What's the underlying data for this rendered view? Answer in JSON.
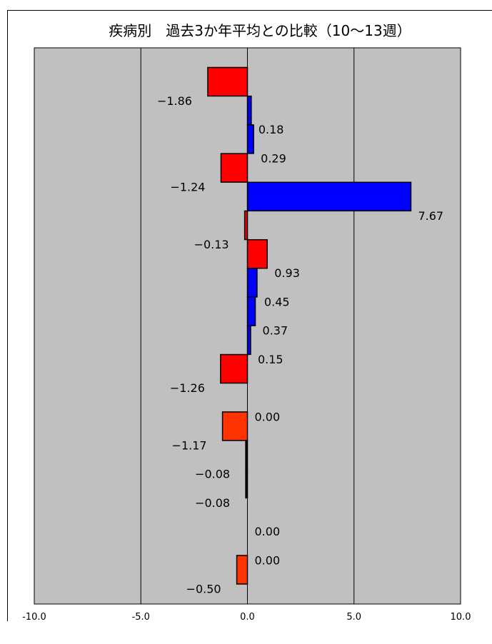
{
  "chart_data": {
    "type": "bar",
    "orientation": "horizontal",
    "title": "疾病別　過去3か年平均との比較（10～13週）",
    "xlabel": "",
    "ylabel": "",
    "xlim": [
      -10,
      10
    ],
    "x_ticks": [
      "-10.0",
      "-5.0",
      "0.0",
      "5.0",
      "10.0"
    ],
    "grid": "vertical",
    "legend": "none",
    "bars": [
      {
        "value": -1.86,
        "label": "-1.86",
        "color": "#ff0000"
      },
      {
        "value": 0.18,
        "label": "0.18",
        "color": "#0000ff"
      },
      {
        "value": 0.29,
        "label": "0.29",
        "color": "#0000ff"
      },
      {
        "value": -1.24,
        "label": "-1.24",
        "color": "#ff0000"
      },
      {
        "value": 7.67,
        "label": "7.67",
        "color": "#0000ff"
      },
      {
        "value": -0.13,
        "label": "-0.13",
        "color": "#ff0000"
      },
      {
        "value": 0.93,
        "label": "0.93",
        "color": "#ff0000"
      },
      {
        "value": 0.45,
        "label": "0.45",
        "color": "#0000ff"
      },
      {
        "value": 0.37,
        "label": "0.37",
        "color": "#0000ff"
      },
      {
        "value": 0.15,
        "label": "0.15",
        "color": "#0000ff"
      },
      {
        "value": -1.26,
        "label": "-1.26",
        "color": "#ff0000"
      },
      {
        "value": 0.0,
        "label": "0.00",
        "color": "#0000ff"
      },
      {
        "value": -1.17,
        "label": "-1.17",
        "color": "#ff3300"
      },
      {
        "value": -0.08,
        "label": "-0.08",
        "color": "#000000"
      },
      {
        "value": -0.08,
        "label": "-0.08",
        "color": "#000000"
      },
      {
        "value": 0.0,
        "label": "0.00",
        "color": "#0000ff"
      },
      {
        "value": 0.0,
        "label": "0.00",
        "color": "#0000ff"
      },
      {
        "value": -0.5,
        "label": "-0.50",
        "color": "#ff3300"
      }
    ],
    "plot_background": "#c0c0c0"
  }
}
